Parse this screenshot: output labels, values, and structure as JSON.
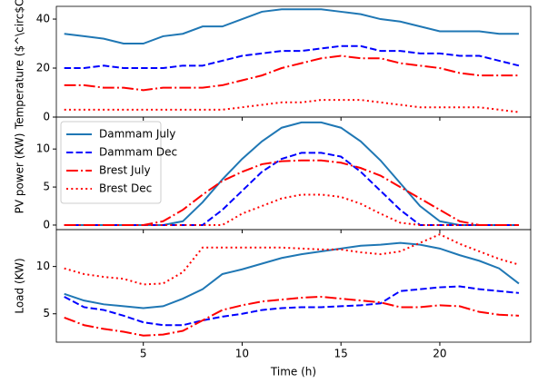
{
  "chart_data": [
    {
      "type": "line",
      "ylabel": "Temperature ($^\\circ$C)",
      "x": [
        1,
        2,
        3,
        4,
        5,
        6,
        7,
        8,
        9,
        10,
        11,
        12,
        13,
        14,
        15,
        16,
        17,
        18,
        19,
        20,
        21,
        22,
        23,
        24
      ],
      "xlim": [
        0.6,
        24.6
      ],
      "xticks": [
        5,
        10,
        15,
        20
      ],
      "ylim": [
        0,
        45.2
      ],
      "yticks": [
        0,
        20,
        40
      ],
      "series": [
        {
          "color": "#1f77b4",
          "linestyle": "solid",
          "values": [
            34,
            33,
            32,
            30,
            30,
            33,
            34,
            37,
            37,
            40,
            43,
            44,
            44,
            44,
            43,
            42,
            40,
            39,
            37,
            35,
            35,
            35,
            34,
            34
          ]
        },
        {
          "color": "#0000ff",
          "linestyle": "dashed",
          "values": [
            20,
            20,
            21,
            20,
            20,
            20,
            21,
            21,
            23,
            25,
            26,
            27,
            27,
            28,
            29,
            29,
            27,
            27,
            26,
            26,
            25,
            25,
            23,
            21
          ]
        },
        {
          "color": "#ff0000",
          "linestyle": "dashdot",
          "values": [
            13,
            13,
            12,
            12,
            11,
            12,
            12,
            12,
            13,
            15,
            17,
            20,
            22,
            24,
            25,
            24,
            24,
            22,
            21,
            20,
            18,
            17,
            17,
            17
          ]
        },
        {
          "color": "#ff0000",
          "linestyle": "dotted",
          "values": [
            3,
            3,
            3,
            3,
            3,
            3,
            3,
            3,
            3,
            4,
            5,
            6,
            6,
            7,
            7,
            7,
            6,
            5,
            4,
            4,
            4,
            4,
            3,
            2
          ]
        }
      ]
    },
    {
      "type": "line",
      "ylabel": "PV power (KW)",
      "legend": "upper left",
      "x": [
        1,
        2,
        3,
        4,
        5,
        6,
        7,
        8,
        9,
        10,
        11,
        12,
        13,
        14,
        15,
        16,
        17,
        18,
        19,
        20,
        21,
        22,
        23,
        24
      ],
      "xlim": [
        0.6,
        24.6
      ],
      "xticks": [
        5,
        10,
        15,
        20
      ],
      "ylim": [
        -0.6,
        14.2
      ],
      "yticks": [
        0,
        5,
        10
      ],
      "series": [
        {
          "name": "Dammam July",
          "color": "#1f77b4",
          "linestyle": "solid",
          "values": [
            0,
            0,
            0,
            0,
            0,
            0,
            0.5,
            3,
            6,
            8.7,
            11,
            12.8,
            13.5,
            13.5,
            12.8,
            11,
            8.5,
            5.5,
            2.5,
            0.5,
            0,
            0,
            0,
            0
          ]
        },
        {
          "name": "Dammam Dec",
          "color": "#0000ff",
          "linestyle": "dashed",
          "values": [
            0,
            0,
            0,
            0,
            0,
            0,
            0,
            0,
            2,
            4.5,
            7,
            8.7,
            9.5,
            9.5,
            9,
            7,
            4.5,
            2,
            0,
            0,
            0,
            0,
            0,
            0
          ]
        },
        {
          "name": "Brest July",
          "color": "#ff0000",
          "linestyle": "dashdot",
          "values": [
            0,
            0,
            0,
            0,
            0,
            0.5,
            2,
            4,
            5.8,
            7,
            8,
            8.4,
            8.5,
            8.5,
            8.2,
            7.5,
            6.5,
            5,
            3.5,
            2,
            0.5,
            0,
            0,
            0
          ]
        },
        {
          "name": "Brest Dec",
          "color": "#ff0000",
          "linestyle": "dotted",
          "values": [
            0,
            0,
            0,
            0,
            0,
            0,
            0,
            0,
            0,
            1.5,
            2.5,
            3.5,
            4,
            4,
            3.7,
            2.8,
            1.5,
            0.3,
            0,
            0,
            0,
            0,
            0,
            0
          ]
        }
      ]
    },
    {
      "type": "line",
      "ylabel": "Load (KW)",
      "xlabel": "Time (h)",
      "x": [
        1,
        2,
        3,
        4,
        5,
        6,
        7,
        8,
        9,
        10,
        11,
        12,
        13,
        14,
        15,
        16,
        17,
        18,
        19,
        20,
        21,
        22,
        23,
        24
      ],
      "xlim": [
        0.6,
        24.6
      ],
      "xticks": [
        5,
        10,
        15,
        20
      ],
      "ylim": [
        2.0,
        13.9
      ],
      "yticks": [
        5,
        10
      ],
      "series": [
        {
          "color": "#1f77b4",
          "linestyle": "solid",
          "values": [
            7.1,
            6.4,
            6.0,
            5.8,
            5.6,
            5.8,
            6.6,
            7.6,
            9.2,
            9.7,
            10.3,
            10.9,
            11.3,
            11.6,
            11.9,
            12.2,
            12.3,
            12.5,
            12.3,
            11.9,
            11.2,
            10.6,
            9.8,
            8.2
          ]
        },
        {
          "color": "#0000ff",
          "linestyle": "dashed",
          "values": [
            6.8,
            5.7,
            5.4,
            4.8,
            4.1,
            3.8,
            3.8,
            4.3,
            4.7,
            5.0,
            5.4,
            5.6,
            5.7,
            5.7,
            5.8,
            5.9,
            6.1,
            7.4,
            7.6,
            7.8,
            7.9,
            7.6,
            7.4,
            7.2
          ]
        },
        {
          "color": "#ff0000",
          "linestyle": "dashdot",
          "values": [
            4.6,
            3.8,
            3.4,
            3.1,
            2.7,
            2.8,
            3.2,
            4.3,
            5.4,
            5.9,
            6.3,
            6.5,
            6.7,
            6.8,
            6.6,
            6.4,
            6.2,
            5.7,
            5.7,
            5.9,
            5.8,
            5.2,
            4.9,
            4.8
          ]
        },
        {
          "color": "#ff0000",
          "linestyle": "dotted",
          "values": [
            9.8,
            9.2,
            8.9,
            8.7,
            8.1,
            8.2,
            9.4,
            12.0,
            12.0,
            12.0,
            12.0,
            12.0,
            11.9,
            11.8,
            11.8,
            11.5,
            11.3,
            11.6,
            12.5,
            13.4,
            12.4,
            11.6,
            10.8,
            10.2
          ]
        }
      ]
    }
  ]
}
